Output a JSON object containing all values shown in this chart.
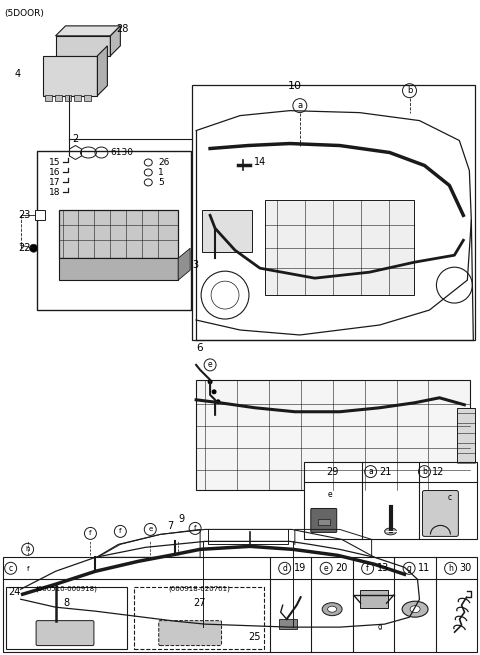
{
  "bg_color": "#ffffff",
  "line_color": "#1a1a1a",
  "fig_width": 4.8,
  "fig_height": 6.55,
  "dpi": 100,
  "five_door_label": "(5DOOR)",
  "label_28": "28",
  "label_4": "4",
  "label_2": "2",
  "label_14": "14",
  "label_6130": "6130",
  "label_15": "15",
  "label_16": "16",
  "label_17": "17",
  "label_18": "18",
  "label_26": "26",
  "label_1": "1",
  "label_5": "5",
  "label_23": "23",
  "label_22": "22",
  "label_3": "3",
  "label_10": "10",
  "label_6": "6",
  "label_a": "a",
  "label_b": "b",
  "label_c": "c",
  "label_d": "d",
  "label_e": "e",
  "label_f": "f",
  "label_g": "g",
  "label_h": "h",
  "label_7": "7",
  "label_9": "9",
  "label_24": "24",
  "label_25": "25",
  "label_29": "29",
  "label_21": "21",
  "label_12": "12",
  "label_19": "19",
  "label_20": "20",
  "label_13": "13",
  "label_11": "11",
  "label_30": "30",
  "label_8": "8",
  "label_27": "27",
  "sub1_text": "(000510-000918)",
  "sub2_text": "(000918-020701)"
}
